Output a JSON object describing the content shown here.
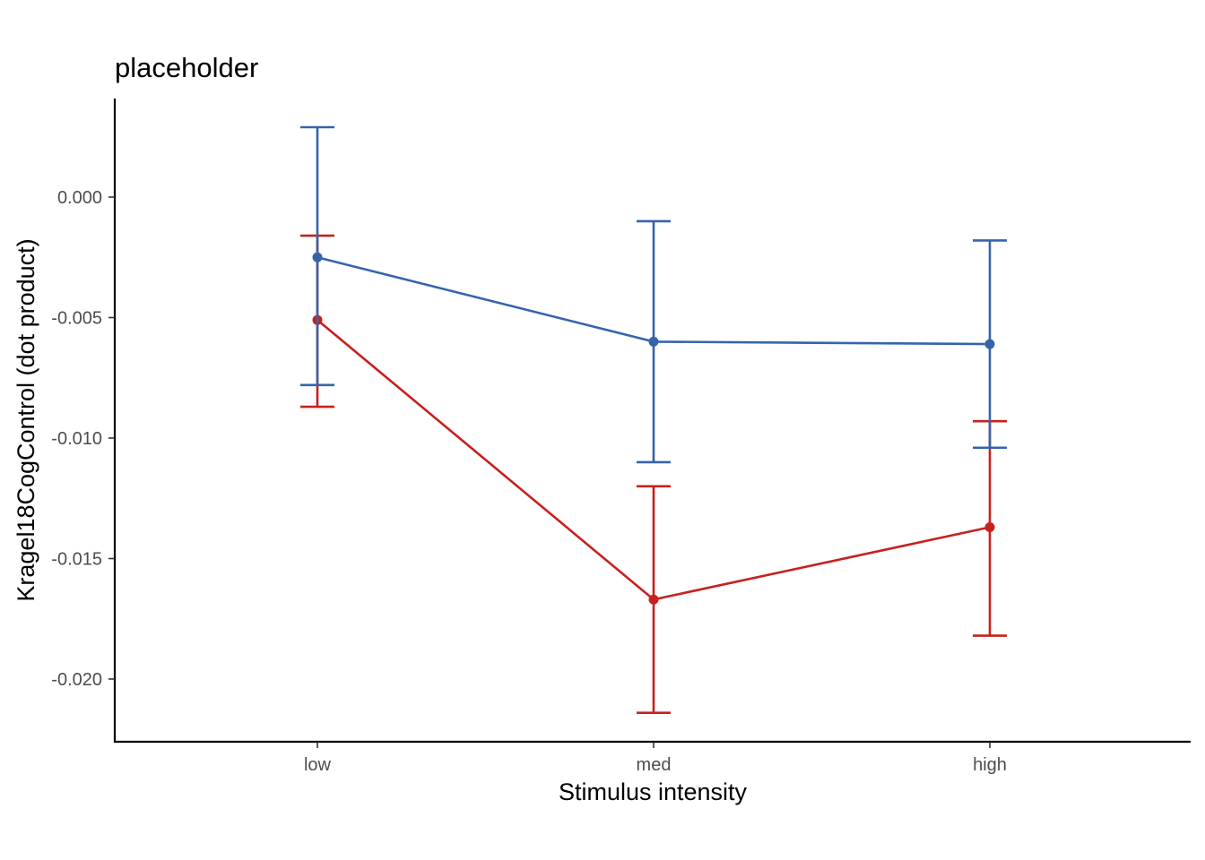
{
  "chart_data": {
    "type": "line",
    "title": "placeholder",
    "xlabel": "Stimulus intensity",
    "ylabel": "Kragel18CogControl  (dot product)",
    "categories": [
      "low",
      "med",
      "high"
    ],
    "ylim": [
      -0.0226,
      0.0039
    ],
    "yticks": [
      0.0,
      -0.005,
      -0.01,
      -0.015,
      -0.02
    ],
    "ytick_labels": [
      "0.000",
      "-0.005",
      "-0.010",
      "-0.015",
      "-0.020"
    ],
    "grid": false,
    "legend": "none",
    "series": [
      {
        "name": "red",
        "color": "#c8201e",
        "values": [
          -0.0051,
          -0.0167,
          -0.0137
        ],
        "err_low": [
          -0.0087,
          -0.0214,
          -0.0182
        ],
        "err_high": [
          -0.0016,
          -0.012,
          -0.0093
        ]
      },
      {
        "name": "blue",
        "color": "#3564ab",
        "values": [
          -0.0025,
          -0.006,
          -0.0061
        ],
        "err_low": [
          -0.0078,
          -0.011,
          -0.0104
        ],
        "err_high": [
          0.0029,
          -0.001,
          -0.0018
        ]
      }
    ]
  }
}
